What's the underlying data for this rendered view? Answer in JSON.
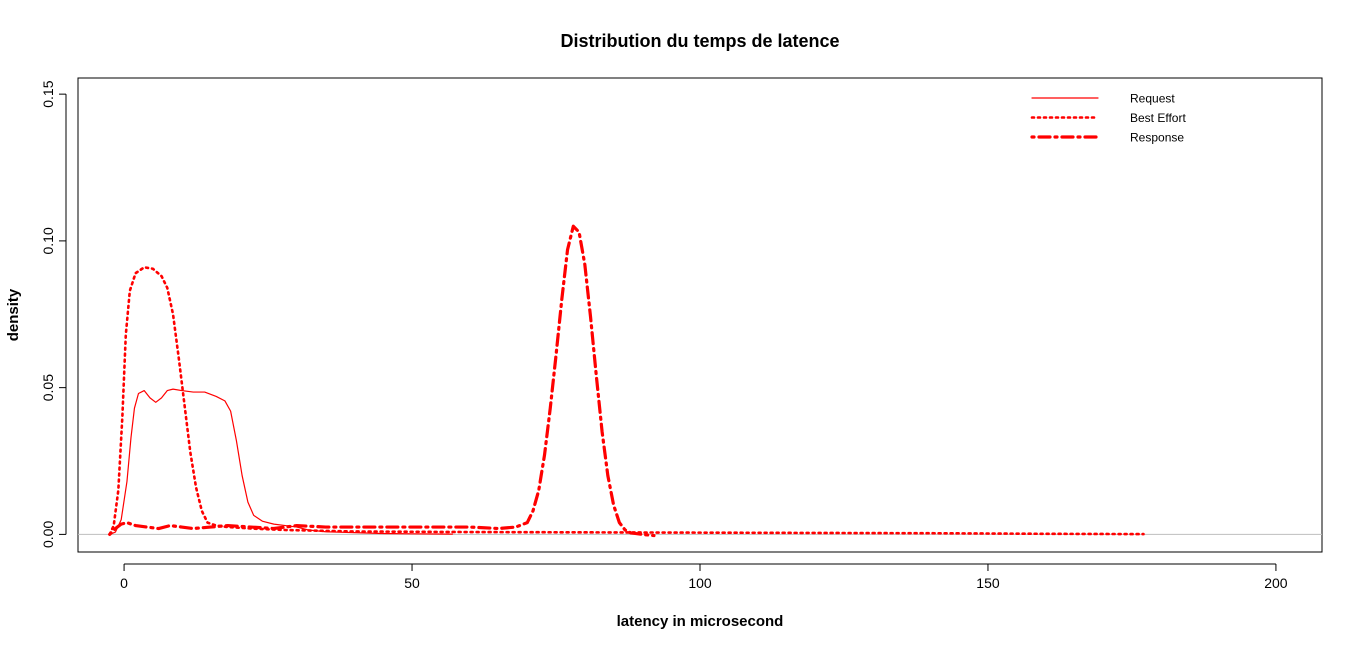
{
  "chart_data": {
    "type": "line",
    "title": "Distribution du temps de latence",
    "xlabel": "latency in microsecond",
    "ylabel": "density",
    "xlim": [
      -8,
      208
    ],
    "ylim": [
      -0.006,
      0.1555
    ],
    "xticks": [
      0,
      50,
      100,
      150,
      200
    ],
    "yticks": [
      0.0,
      0.05,
      0.1,
      0.15
    ],
    "xtick_labels": [
      "0",
      "50",
      "100",
      "150",
      "200"
    ],
    "ytick_labels": [
      "0.00",
      "0.05",
      "0.10",
      "0.15"
    ],
    "grid": false,
    "zero_line": true,
    "legend_position": "top-right",
    "series": [
      {
        "name": "Request",
        "color": "#ff0000",
        "style": "solid",
        "points": [
          [
            -2.5,
            0.0
          ],
          [
            -1.5,
            0.0008
          ],
          [
            -0.5,
            0.005
          ],
          [
            0.5,
            0.018
          ],
          [
            1.2,
            0.033
          ],
          [
            1.8,
            0.043
          ],
          [
            2.5,
            0.048
          ],
          [
            3.5,
            0.049
          ],
          [
            4.5,
            0.0465
          ],
          [
            5.5,
            0.045
          ],
          [
            6.5,
            0.0465
          ],
          [
            7.5,
            0.049
          ],
          [
            8.5,
            0.0495
          ],
          [
            10,
            0.049
          ],
          [
            12,
            0.0485
          ],
          [
            14,
            0.0485
          ],
          [
            16,
            0.047
          ],
          [
            17.5,
            0.0455
          ],
          [
            18.5,
            0.042
          ],
          [
            19.5,
            0.032
          ],
          [
            20.5,
            0.02
          ],
          [
            21.5,
            0.011
          ],
          [
            22.5,
            0.0065
          ],
          [
            24,
            0.0045
          ],
          [
            26,
            0.0035
          ],
          [
            28,
            0.003
          ],
          [
            30,
            0.0025
          ],
          [
            32,
            0.0015
          ],
          [
            35,
            0.0009
          ],
          [
            40,
            0.0006
          ],
          [
            45,
            0.0003
          ],
          [
            50,
            0.0002
          ],
          [
            57,
            0.0001
          ]
        ]
      },
      {
        "name": "Best Effort",
        "color": "#ff0000",
        "style": "dotted",
        "points": [
          [
            -2.5,
            0.0
          ],
          [
            -1.8,
            0.003
          ],
          [
            -1.0,
            0.015
          ],
          [
            -0.3,
            0.04
          ],
          [
            0.3,
            0.068
          ],
          [
            1.0,
            0.083
          ],
          [
            2.0,
            0.089
          ],
          [
            3.5,
            0.091
          ],
          [
            5.0,
            0.0905
          ],
          [
            6.5,
            0.088
          ],
          [
            7.5,
            0.084
          ],
          [
            8.5,
            0.075
          ],
          [
            9.5,
            0.06
          ],
          [
            10.5,
            0.044
          ],
          [
            11.5,
            0.028
          ],
          [
            12.5,
            0.016
          ],
          [
            13.5,
            0.008
          ],
          [
            14.5,
            0.004
          ],
          [
            16,
            0.003
          ],
          [
            18,
            0.0025
          ],
          [
            22,
            0.002
          ],
          [
            28,
            0.0015
          ],
          [
            40,
            0.001
          ],
          [
            60,
            0.0008
          ],
          [
            100,
            0.0006
          ],
          [
            140,
            0.0004
          ],
          [
            160,
            0.0002
          ],
          [
            177,
            0.0001
          ]
        ]
      },
      {
        "name": "Response",
        "color": "#ff0000",
        "style": "dotdash",
        "points": [
          [
            -2.5,
            0.0
          ],
          [
            -1.5,
            0.002
          ],
          [
            -0.5,
            0.0035
          ],
          [
            0.5,
            0.004
          ],
          [
            2,
            0.003
          ],
          [
            4,
            0.0025
          ],
          [
            6,
            0.002
          ],
          [
            8,
            0.003
          ],
          [
            10,
            0.0025
          ],
          [
            12,
            0.002
          ],
          [
            15,
            0.0025
          ],
          [
            18,
            0.003
          ],
          [
            22,
            0.0025
          ],
          [
            26,
            0.002
          ],
          [
            30,
            0.003
          ],
          [
            35,
            0.0025
          ],
          [
            40,
            0.0025
          ],
          [
            45,
            0.0025
          ],
          [
            50,
            0.0025
          ],
          [
            55,
            0.0025
          ],
          [
            60,
            0.0025
          ],
          [
            65,
            0.002
          ],
          [
            68,
            0.0025
          ],
          [
            70,
            0.004
          ],
          [
            71,
            0.008
          ],
          [
            72,
            0.015
          ],
          [
            73,
            0.027
          ],
          [
            74,
            0.043
          ],
          [
            75,
            0.061
          ],
          [
            76,
            0.08
          ],
          [
            77,
            0.097
          ],
          [
            78,
            0.105
          ],
          [
            79,
            0.103
          ],
          [
            80,
            0.092
          ],
          [
            81,
            0.074
          ],
          [
            82,
            0.054
          ],
          [
            83,
            0.035
          ],
          [
            84,
            0.02
          ],
          [
            85,
            0.01
          ],
          [
            86,
            0.004
          ],
          [
            87,
            0.0015
          ],
          [
            88,
            0.0005
          ],
          [
            90,
            0.0
          ],
          [
            92,
            -0.0004
          ]
        ]
      }
    ]
  }
}
